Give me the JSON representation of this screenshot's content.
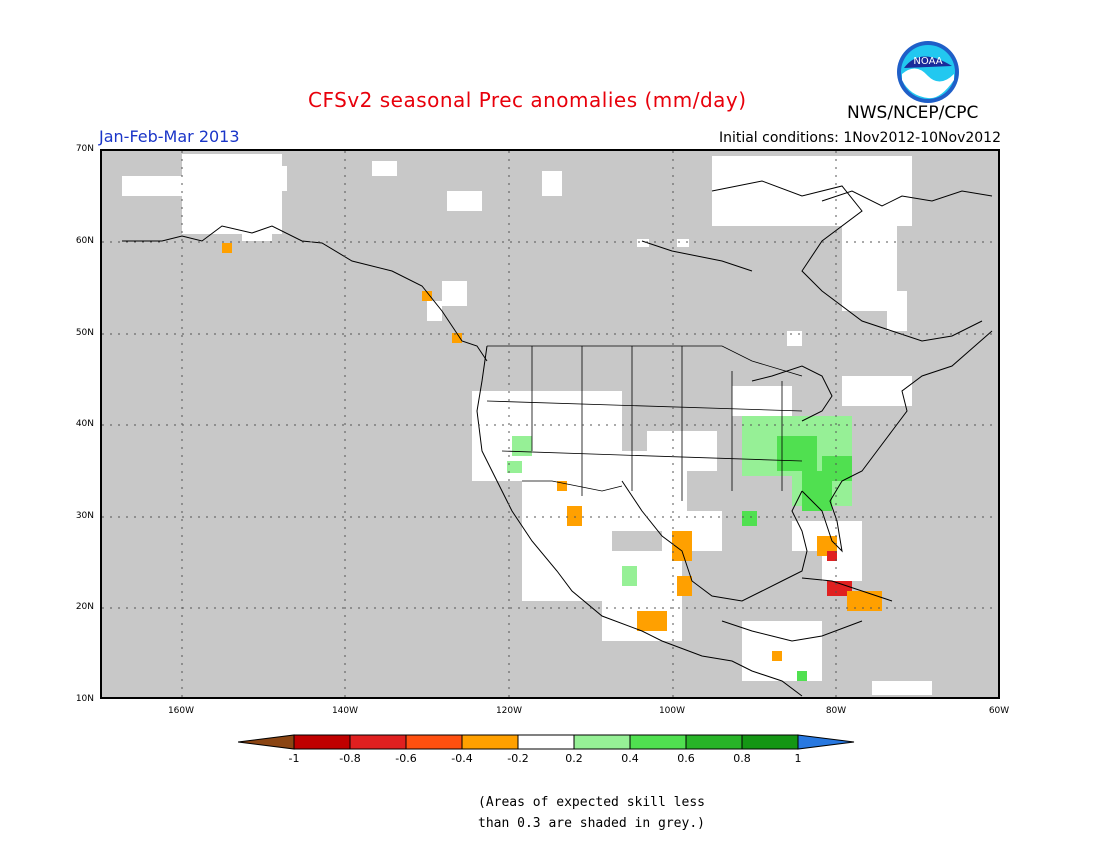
{
  "title": "CFSv2 seasonal Prec anomalies (mm/day)",
  "period": "Jan-Feb-Mar 2013",
  "initial_conditions": "Initial conditions: 1Nov2012-10Nov2012",
  "agency": "NWS/NCEP/CPC",
  "logo_text": "NOAA",
  "map": {
    "lon_range": [
      -170,
      -60
    ],
    "lat_range": [
      10,
      70
    ],
    "lon_ticks": [
      "160W",
      "140W",
      "120W",
      "100W",
      "80W",
      "60W"
    ],
    "lat_ticks": [
      "70N",
      "60N",
      "50N",
      "40N",
      "30N",
      "20N",
      "10N"
    ],
    "background_color": "#c8c8c8"
  },
  "legend": {
    "labels": [
      "-1",
      "-0.8",
      "-0.6",
      "-0.4",
      "-0.2",
      "0.2",
      "0.4",
      "0.6",
      "0.8",
      "1"
    ],
    "colors": [
      "#8b4513",
      "#c00000",
      "#e02020",
      "#ff5010",
      "#ffa000",
      "#ffffff",
      "#96f096",
      "#50e050",
      "#28b428",
      "#149614",
      "#2878e0"
    ]
  },
  "note_lines": [
    "(Areas of expected skill less",
    "than 0.3 are shaded in grey.)"
  ]
}
